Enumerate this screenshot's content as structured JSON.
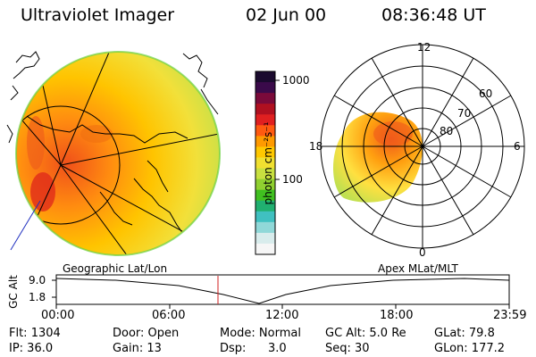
{
  "header": {
    "instrument": "Ultraviolet Imager",
    "date": "02 Jun 00",
    "time": "08:36:48 UT"
  },
  "colorbar": {
    "unit_label": "photon cm⁻²s⁻¹",
    "tick_labels": [
      "1000",
      "100"
    ],
    "colors": [
      "#1a0a2e",
      "#3a0a4a",
      "#7a0a3a",
      "#b01020",
      "#e02020",
      "#ff5a10",
      "#ff9a00",
      "#ffc800",
      "#f0e030",
      "#c8e040",
      "#90d030",
      "#40c020",
      "#20b070",
      "#40c0c0",
      "#90d8d8",
      "#d8ecec",
      "#f6f6f6"
    ]
  },
  "polar_plot": {
    "labels": {
      "top": "12",
      "left": "18",
      "right": "6",
      "bottom": "0",
      "r1": "60",
      "r2": "70",
      "r3": "80"
    }
  },
  "timeline": {
    "left_title": "Geographic Lat/Lon",
    "right_title": "Apex MLat/MLT",
    "axis_label": "GC Alt",
    "y_ticks": [
      "9.0",
      "1.8"
    ],
    "x_ticks": [
      "00:00",
      "06:00",
      "12:00",
      "18:00",
      "23:59"
    ]
  },
  "status": {
    "flt": "Flt: 1304",
    "ip": "IP: 36.0",
    "door": "Door: Open",
    "gain": "Gain: 13",
    "mode": "Mode: Normal",
    "dsp_label": "Dsp:",
    "dsp_value": "3.0",
    "gc_alt": "GC Alt: 5.0 Re",
    "seq": "Seq: 30",
    "glat": "GLat: 79.8",
    "glon": "GLon: 177.2"
  }
}
